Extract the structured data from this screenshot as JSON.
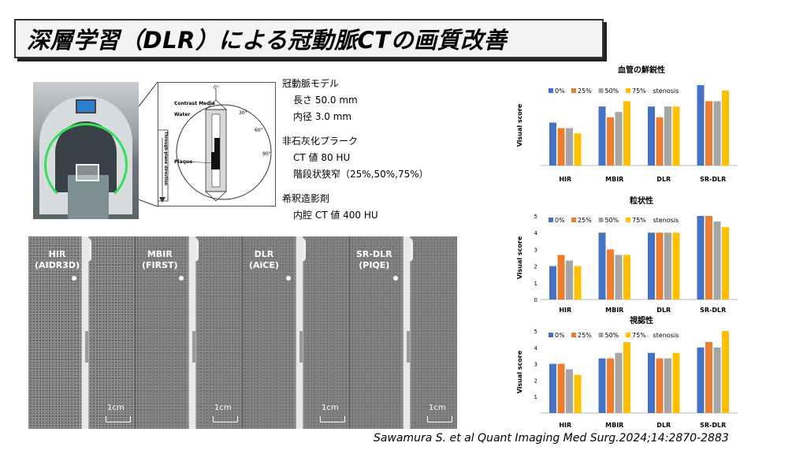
{
  "title": "深層学習（DLR）による冠動脈CTの画質改善",
  "diagram": {
    "contrast_media": "Contrast Media",
    "water": "Water",
    "plaque": "Plaque",
    "direction": "Through-plane direction",
    "angle_0": "0°",
    "angle_30": "30°",
    "angle_60": "60°",
    "angle_90": "90°"
  },
  "description": {
    "model_heading": "冠動脈モデル",
    "length": "長さ 50.0 mm",
    "inner_diameter": "内径 3.0 mm",
    "plaque_heading": "非石灰化プラーク",
    "ct_value": "CT 値 80 HU",
    "stenosis": "階段状狭窄（25%,50%,75%）",
    "contrast_heading": "希釈造影剤",
    "lumen_ct": "内腔 CT 値 400 HU"
  },
  "ct_panels": [
    {
      "line1": "HIR",
      "line2": "(AIDR3D)",
      "scale": "1cm"
    },
    {
      "line1": "MBIR",
      "line2": "(FIRST)",
      "scale": "1cm"
    },
    {
      "line1": "DLR",
      "line2": "(AiCE)",
      "scale": "1cm"
    },
    {
      "line1": "SR-DLR",
      "line2": "(PIQE)",
      "scale": "1cm"
    }
  ],
  "colors": {
    "s0": "#4472C4",
    "s25": "#ED7D31",
    "s50": "#A5A5A5",
    "s75": "#FFC000"
  },
  "chart_data": [
    {
      "type": "bar",
      "title": "血管の鮮鋭性",
      "ylabel": "Visual score",
      "legend_suffix": "stenosis",
      "categories": [
        "HIR",
        "MBIR",
        "DLR",
        "SR-DLR"
      ],
      "ylim": [
        0,
        5
      ],
      "yticks": [],
      "series": [
        {
          "name": "0%",
          "values": [
            2.67,
            3.67,
            3.67,
            5.0
          ]
        },
        {
          "name": "25%",
          "values": [
            2.33,
            3.0,
            3.0,
            4.0
          ]
        },
        {
          "name": "50%",
          "values": [
            2.33,
            3.33,
            3.67,
            4.0
          ]
        },
        {
          "name": "75%",
          "values": [
            2.0,
            4.0,
            3.67,
            4.67
          ]
        }
      ]
    },
    {
      "type": "bar",
      "title": "粒状性",
      "ylabel": "Visual score",
      "legend_suffix": "stenosis",
      "categories": [
        "HIR",
        "MBIR",
        "DLR",
        "SR-DLR"
      ],
      "ylim": [
        0,
        5
      ],
      "yticks": [
        "0",
        "1",
        "2",
        "3",
        "4",
        "5"
      ],
      "series": [
        {
          "name": "0%",
          "values": [
            2.0,
            4.0,
            4.0,
            5.0
          ]
        },
        {
          "name": "25%",
          "values": [
            2.67,
            3.0,
            4.0,
            5.0
          ]
        },
        {
          "name": "50%",
          "values": [
            2.33,
            2.67,
            4.0,
            4.67
          ]
        },
        {
          "name": "75%",
          "values": [
            2.0,
            2.67,
            4.0,
            4.33
          ]
        }
      ]
    },
    {
      "type": "bar",
      "title": "視認性",
      "ylabel": "Visual score",
      "legend_suffix": "stenosis",
      "categories": [
        "HIR",
        "MBIR",
        "DLR",
        "SR-DLR"
      ],
      "ylim": [
        0,
        5
      ],
      "yticks": [
        "1",
        "2",
        "3",
        "4",
        "5"
      ],
      "series": [
        {
          "name": "0%",
          "values": [
            3.0,
            3.33,
            3.67,
            4.0
          ]
        },
        {
          "name": "25%",
          "values": [
            3.0,
            3.33,
            3.33,
            4.33
          ]
        },
        {
          "name": "50%",
          "values": [
            2.67,
            3.67,
            3.33,
            4.0
          ]
        },
        {
          "name": "75%",
          "values": [
            2.33,
            4.33,
            3.67,
            5.0
          ]
        }
      ]
    }
  ],
  "citation": "Sawamura S. et al Quant Imaging Med Surg.2024;14:2870-2883"
}
